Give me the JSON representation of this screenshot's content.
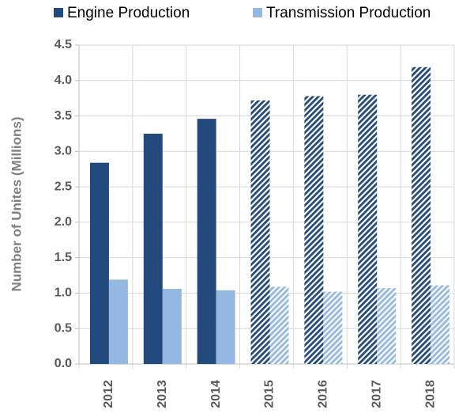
{
  "chart_data": {
    "type": "bar",
    "categories": [
      "2012",
      "2013",
      "2014",
      "2015",
      "2016",
      "2017",
      "2018"
    ],
    "series": [
      {
        "name": "Engine Production",
        "color": "#234a7c",
        "values": [
          2.84,
          3.25,
          3.46,
          3.72,
          3.78,
          3.8,
          4.19
        ]
      },
      {
        "name": "Transmission Production",
        "color": "#95b8e3",
        "values": [
          1.19,
          1.06,
          1.04,
          1.09,
          1.02,
          1.07,
          1.11
        ]
      }
    ],
    "hatched": [
      false,
      false,
      false,
      true,
      true,
      true,
      true
    ],
    "y_label": "Number of Unites (Millions)",
    "ylim": [
      0,
      4.5
    ],
    "yticks": [
      {
        "value": 0,
        "label": "0.0"
      },
      0.5,
      {
        "value": 1,
        "label": "1.0"
      },
      1.5,
      {
        "value": 2,
        "label": "2.0"
      },
      2.5,
      {
        "value": 3,
        "label": "3.0"
      },
      3.5,
      {
        "value": 4,
        "label": "4.0"
      },
      4.5
    ],
    "grid": true,
    "legend": "top"
  }
}
